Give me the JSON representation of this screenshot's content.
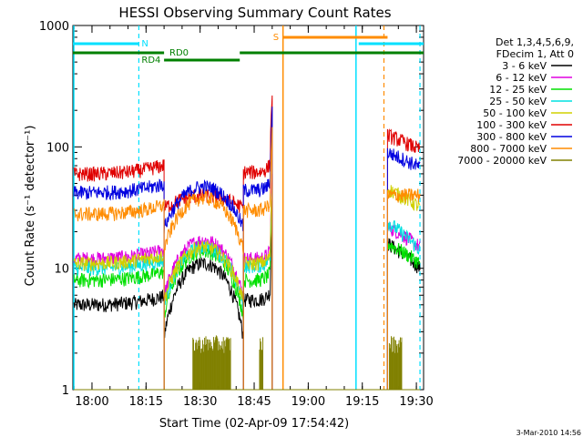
{
  "chart_data": {
    "type": "line",
    "title": "HESSI Observing Summary Count Rates",
    "ylabel": "Count Rate (s⁻¹ detector⁻¹)",
    "xlabel": "Start Time (02-Apr-09 17:54:42)",
    "timestamp": "3-Mar-2010 14:56",
    "xlim": [
      "17:54:42",
      "19:32:00"
    ],
    "ylim": [
      1,
      1000
    ],
    "yscale": "log",
    "x_ticks": [
      "18:00",
      "18:15",
      "18:30",
      "18:45",
      "19:00",
      "19:15",
      "19:30"
    ],
    "y_ticks": [
      "1",
      "10",
      "100",
      "1000"
    ],
    "legend": {
      "position": "right",
      "header": [
        "Det 1,3,4,5,6,9,",
        "FDecim 1, Att 0"
      ],
      "entries": [
        {
          "label": "3 - 6 keV",
          "color": "#000000"
        },
        {
          "label": "6 - 12 keV",
          "color": "#e000e0"
        },
        {
          "label": "12 - 25 keV",
          "color": "#00e000"
        },
        {
          "label": "25 - 50 keV",
          "color": "#00e0e0"
        },
        {
          "label": "50 - 100 keV",
          "color": "#d0d000"
        },
        {
          "label": "100 - 300 keV",
          "color": "#e00000"
        },
        {
          "label": "300 - 800 keV",
          "color": "#0000e0"
        },
        {
          "label": "800 - 7000 keV",
          "color": "#ff8c00"
        },
        {
          "label": "7000 - 20000 keV",
          "color": "#808000"
        }
      ]
    },
    "annotations": {
      "N_label": "N",
      "S_label": "S",
      "RD0_label": "RD0",
      "RD4_label": "RD4",
      "N_bars": [
        [
          "17:54:42",
          "18:13:00"
        ],
        [
          "19:14:00",
          "19:32:00"
        ]
      ],
      "S_bar": [
        "18:53:00",
        "19:22:00"
      ],
      "RD0_bars": [
        [
          "17:54:42",
          "18:20:00"
        ],
        [
          "18:41:00",
          "19:32:00"
        ]
      ],
      "RD4_bar": [
        "18:20:00",
        "18:41:00"
      ],
      "cyan_lines_solid": [
        "17:54:42",
        "19:13:00"
      ],
      "cyan_lines_dashed": [
        "18:13:00",
        "19:31:00"
      ],
      "orange_lines_solid": [
        "18:53:00"
      ],
      "orange_lines_dashed": [
        "19:21:00"
      ]
    },
    "segments": [
      {
        "start": "17:55:00",
        "end": "18:20:00",
        "profile": "flat-rise"
      },
      {
        "start": "18:20:00",
        "end": "18:42:00",
        "profile": "dome"
      },
      {
        "start": "18:42:00",
        "end": "18:50:00",
        "profile": "flat-spike"
      },
      {
        "start": "19:22:00",
        "end": "19:31:00",
        "profile": "decay"
      }
    ],
    "series": [
      {
        "name": "3 - 6 keV",
        "color": "#000000",
        "base": [
          5,
          6,
          5.5,
          5
        ],
        "dome": 11,
        "tail": [
          16,
          10
        ]
      },
      {
        "name": "6 - 12 keV",
        "color": "#e000e0",
        "base": [
          12,
          13,
          12,
          12
        ],
        "dome": 17,
        "tail": [
          22,
          15
        ]
      },
      {
        "name": "12 - 25 keV",
        "color": "#00e000",
        "base": [
          8,
          9,
          8,
          8
        ],
        "dome": 14,
        "tail": [
          16,
          11
        ]
      },
      {
        "name": "25 - 50 keV",
        "color": "#00e0e0",
        "base": [
          10,
          11,
          10.5,
          10
        ],
        "dome": 15,
        "tail": [
          24,
          14
        ]
      },
      {
        "name": "50 - 100 keV",
        "color": "#d0d000",
        "base": [
          11,
          12,
          11,
          11
        ],
        "dome": 15,
        "tail": [
          45,
          32
        ]
      },
      {
        "name": "100 - 300 keV",
        "color": "#e00000",
        "base": [
          60,
          70,
          62,
          58
        ],
        "dome": 40,
        "tail": [
          125,
          95
        ]
      },
      {
        "name": "300 - 800 keV",
        "color": "#0000e0",
        "base": [
          42,
          48,
          44,
          40
        ],
        "dome": 47,
        "tail": [
          90,
          68
        ]
      },
      {
        "name": "800 - 7000 keV",
        "color": "#ff8c00",
        "base": [
          28,
          32,
          30,
          28
        ],
        "dome": 38,
        "tail": [
          40,
          40
        ]
      },
      {
        "name": "7000 - 20000 keV",
        "color": "#808000",
        "base": [
          1,
          1,
          1,
          1
        ],
        "dome": 1,
        "tail": [
          1,
          1
        ]
      }
    ]
  }
}
